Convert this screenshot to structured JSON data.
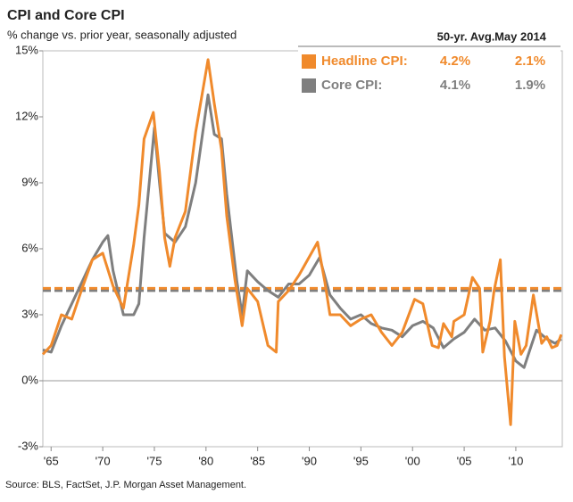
{
  "chart_data": {
    "type": "line",
    "title": "CPI and Core CPI",
    "subtitle": "% change vs. prior year, seasonally adjusted",
    "source": "Source: BLS, FactSet, J.P. Morgan Asset Management.",
    "legend_headers": [
      "50-yr. Avg.",
      "May 2014"
    ],
    "xlim": [
      1964.2,
      2014.5
    ],
    "xticks": [
      {
        "value": 1965,
        "label": "'65"
      },
      {
        "value": 1970,
        "label": "'70"
      },
      {
        "value": 1975,
        "label": "'75"
      },
      {
        "value": 1980,
        "label": "'80"
      },
      {
        "value": 1985,
        "label": "'85"
      },
      {
        "value": 1990,
        "label": "'90"
      },
      {
        "value": 1995,
        "label": "'95"
      },
      {
        "value": 2000,
        "label": "'00"
      },
      {
        "value": 2005,
        "label": "'05"
      },
      {
        "value": 2010,
        "label": "'10"
      }
    ],
    "ylim": [
      -3,
      15
    ],
    "yticks": [
      {
        "value": -3,
        "label": "-3%"
      },
      {
        "value": 0,
        "label": "0%"
      },
      {
        "value": 3,
        "label": "3%"
      },
      {
        "value": 6,
        "label": "6%"
      },
      {
        "value": 9,
        "label": "9%"
      },
      {
        "value": 12,
        "label": "12%"
      },
      {
        "value": 15,
        "label": "15%"
      }
    ],
    "series": [
      {
        "name": "Core CPI:",
        "color": "#7f7f7f",
        "average": 4.1,
        "average_label": "4.1%",
        "latest_label": "1.9%",
        "x": [
          1964.2,
          1965,
          1966,
          1967,
          1968,
          1969,
          1970,
          1970.5,
          1971,
          1972,
          1973,
          1973.5,
          1974,
          1975,
          1975.5,
          1976,
          1977,
          1978,
          1979,
          1980.2,
          1980.8,
          1981.5,
          1982,
          1983,
          1983.5,
          1984,
          1985,
          1986,
          1987,
          1988,
          1989,
          1990,
          1991,
          1992,
          1993,
          1994,
          1995,
          1996,
          1997,
          1998,
          1999,
          2000,
          2001,
          2002,
          2003,
          2004,
          2005,
          2006,
          2007,
          2008,
          2009,
          2010,
          2010.8,
          2011.5,
          2012,
          2013,
          2013.8,
          2014.4
        ],
        "values": [
          1.4,
          1.3,
          2.5,
          3.5,
          4.5,
          5.5,
          6.3,
          6.6,
          5.0,
          3.0,
          3.0,
          3.5,
          6.5,
          11.5,
          9.0,
          6.7,
          6.3,
          7.0,
          9.0,
          13.0,
          11.2,
          11.0,
          8.5,
          4.5,
          3.0,
          5.0,
          4.5,
          4.1,
          3.8,
          4.4,
          4.4,
          4.8,
          5.6,
          3.9,
          3.3,
          2.8,
          3.0,
          2.6,
          2.4,
          2.3,
          2.0,
          2.5,
          2.7,
          2.4,
          1.5,
          1.9,
          2.2,
          2.8,
          2.3,
          2.4,
          1.8,
          0.9,
          0.6,
          1.6,
          2.3,
          1.9,
          1.7,
          1.9
        ]
      },
      {
        "name": "Headline CPI:",
        "color": "#f08a2c",
        "average": 4.2,
        "average_label": "4.2%",
        "latest_label": "2.1%",
        "x": [
          1964.2,
          1965,
          1966,
          1967,
          1968,
          1969,
          1970,
          1971,
          1972,
          1973,
          1973.5,
          1974,
          1974.9,
          1975.5,
          1976,
          1976.5,
          1977,
          1978,
          1979,
          1980.2,
          1980.8,
          1981.5,
          1982,
          1982.8,
          1983.5,
          1984,
          1985,
          1986,
          1986.8,
          1987,
          1988,
          1989,
          1990.8,
          1991.5,
          1992,
          1993,
          1994,
          1995,
          1996,
          1997,
          1998,
          1999,
          2000.2,
          2001,
          2001.9,
          2002.5,
          2003,
          2003.8,
          2004,
          2005,
          2005.8,
          2006.5,
          2006.8,
          2007.5,
          2007.9,
          2008.5,
          2008.9,
          2009.5,
          2009.9,
          2010.5,
          2011,
          2011.7,
          2012.5,
          2013,
          2013.5,
          2014,
          2014.4
        ],
        "values": [
          1.2,
          1.6,
          3.0,
          2.8,
          4.2,
          5.5,
          5.8,
          4.3,
          3.3,
          6.2,
          8.0,
          11.0,
          12.2,
          9.5,
          6.5,
          5.2,
          6.5,
          7.7,
          11.3,
          14.6,
          12.6,
          10.5,
          7.5,
          4.6,
          2.5,
          4.2,
          3.6,
          1.6,
          1.3,
          3.6,
          4.1,
          4.8,
          6.3,
          4.5,
          3.0,
          3.0,
          2.5,
          2.8,
          3.0,
          2.2,
          1.6,
          2.2,
          3.7,
          3.5,
          1.6,
          1.5,
          2.6,
          2.0,
          2.7,
          3.0,
          4.7,
          4.2,
          1.3,
          2.7,
          4.1,
          5.5,
          1.1,
          -2.0,
          2.7,
          1.2,
          1.6,
          3.9,
          1.7,
          2.0,
          1.5,
          1.6,
          2.1
        ]
      }
    ]
  }
}
